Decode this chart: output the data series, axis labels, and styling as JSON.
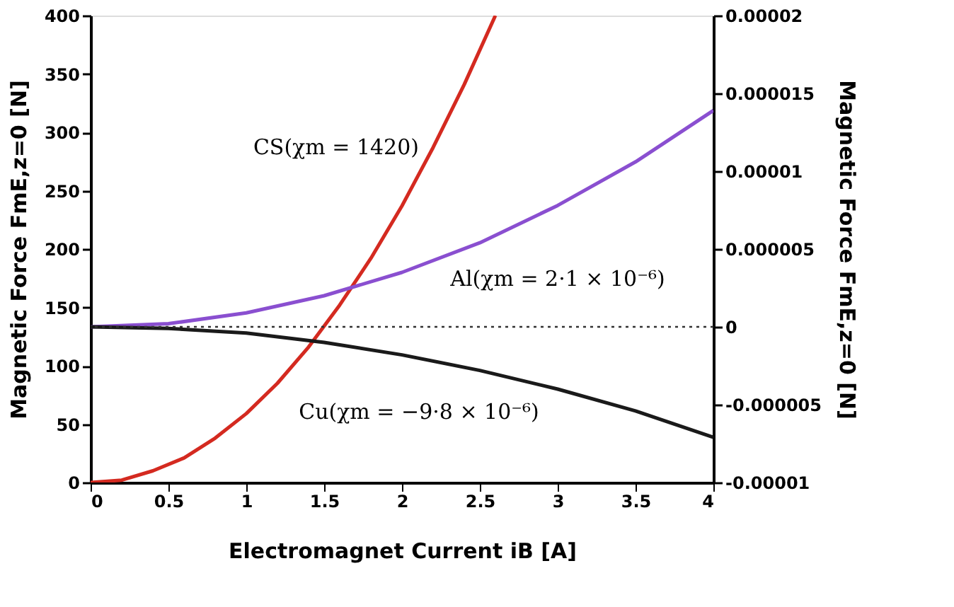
{
  "chart_data": {
    "type": "line",
    "xlabel": "Electromagnet Current iB [A]",
    "ylabel": "Magnetic Force FmE,z=0 [N]",
    "y2label": "Magnetic Force FmE,z=0 [N]",
    "series": [
      {
        "color": "#d42a20",
        "x": [
          0,
          0.2,
          0.4,
          0.6,
          0.8,
          1.0,
          1.2,
          1.4,
          1.6,
          1.8,
          2.0,
          2.2,
          2.4,
          2.6
        ],
        "values": [
          0,
          2,
          10,
          21,
          38,
          59,
          85,
          116,
          152,
          192,
          237,
          287,
          341,
          400
        ]
      },
      {
        "color": "#8a4fd0",
        "axis": "y2",
        "x": [
          0,
          0.5,
          1,
          1.5,
          2,
          2.5,
          3,
          3.5,
          4
        ],
        "values": [
          0,
          2e-07,
          9e-07,
          2e-06,
          3.5e-06,
          5.4e-06,
          7.8e-06,
          1.06e-05,
          1.39e-05
        ]
      },
      {
        "color": "#1a1a1a",
        "axis": "y2",
        "x": [
          0,
          0.5,
          1,
          1.5,
          2,
          2.5,
          3,
          3.5,
          4
        ],
        "values": [
          0,
          -1e-07,
          -4e-07,
          -1e-06,
          -1.8e-06,
          -2.8e-06,
          -4e-06,
          -5.4e-06,
          -7.1e-06
        ]
      }
    ],
    "xlim": [
      0,
      4
    ],
    "xticks": [
      0,
      0.5,
      1,
      1.5,
      2,
      2.5,
      3,
      3.5,
      4
    ],
    "ylim": [
      0,
      400
    ],
    "yticks": [
      0,
      50,
      100,
      150,
      200,
      250,
      300,
      350,
      400
    ],
    "y2lim": [
      -1e-05,
      2e-05
    ],
    "y2ticks": [
      {
        "value": 2e-05,
        "label": "0.00002"
      },
      {
        "value": 1.5e-05,
        "label": "0.000015"
      },
      {
        "value": 1e-05,
        "label": "0.00001"
      },
      {
        "value": 5e-06,
        "label": "0.000005"
      },
      0,
      {
        "value": -5e-06,
        "label": "-0.000005"
      },
      {
        "value": -1e-05,
        "label": "-0.00001"
      }
    ],
    "ref_lines": [
      {
        "axis": "y2",
        "value": 0,
        "color": "#333333",
        "line_style": "dotted"
      }
    ],
    "annotations": [
      "CS(χm = 1420)",
      "Al(χm = 2·1 × 10⁻⁶)",
      "Cu(χm = −9·8 × 10⁻⁶)"
    ],
    "grid": false,
    "marker": "none",
    "line_style": "solid"
  }
}
